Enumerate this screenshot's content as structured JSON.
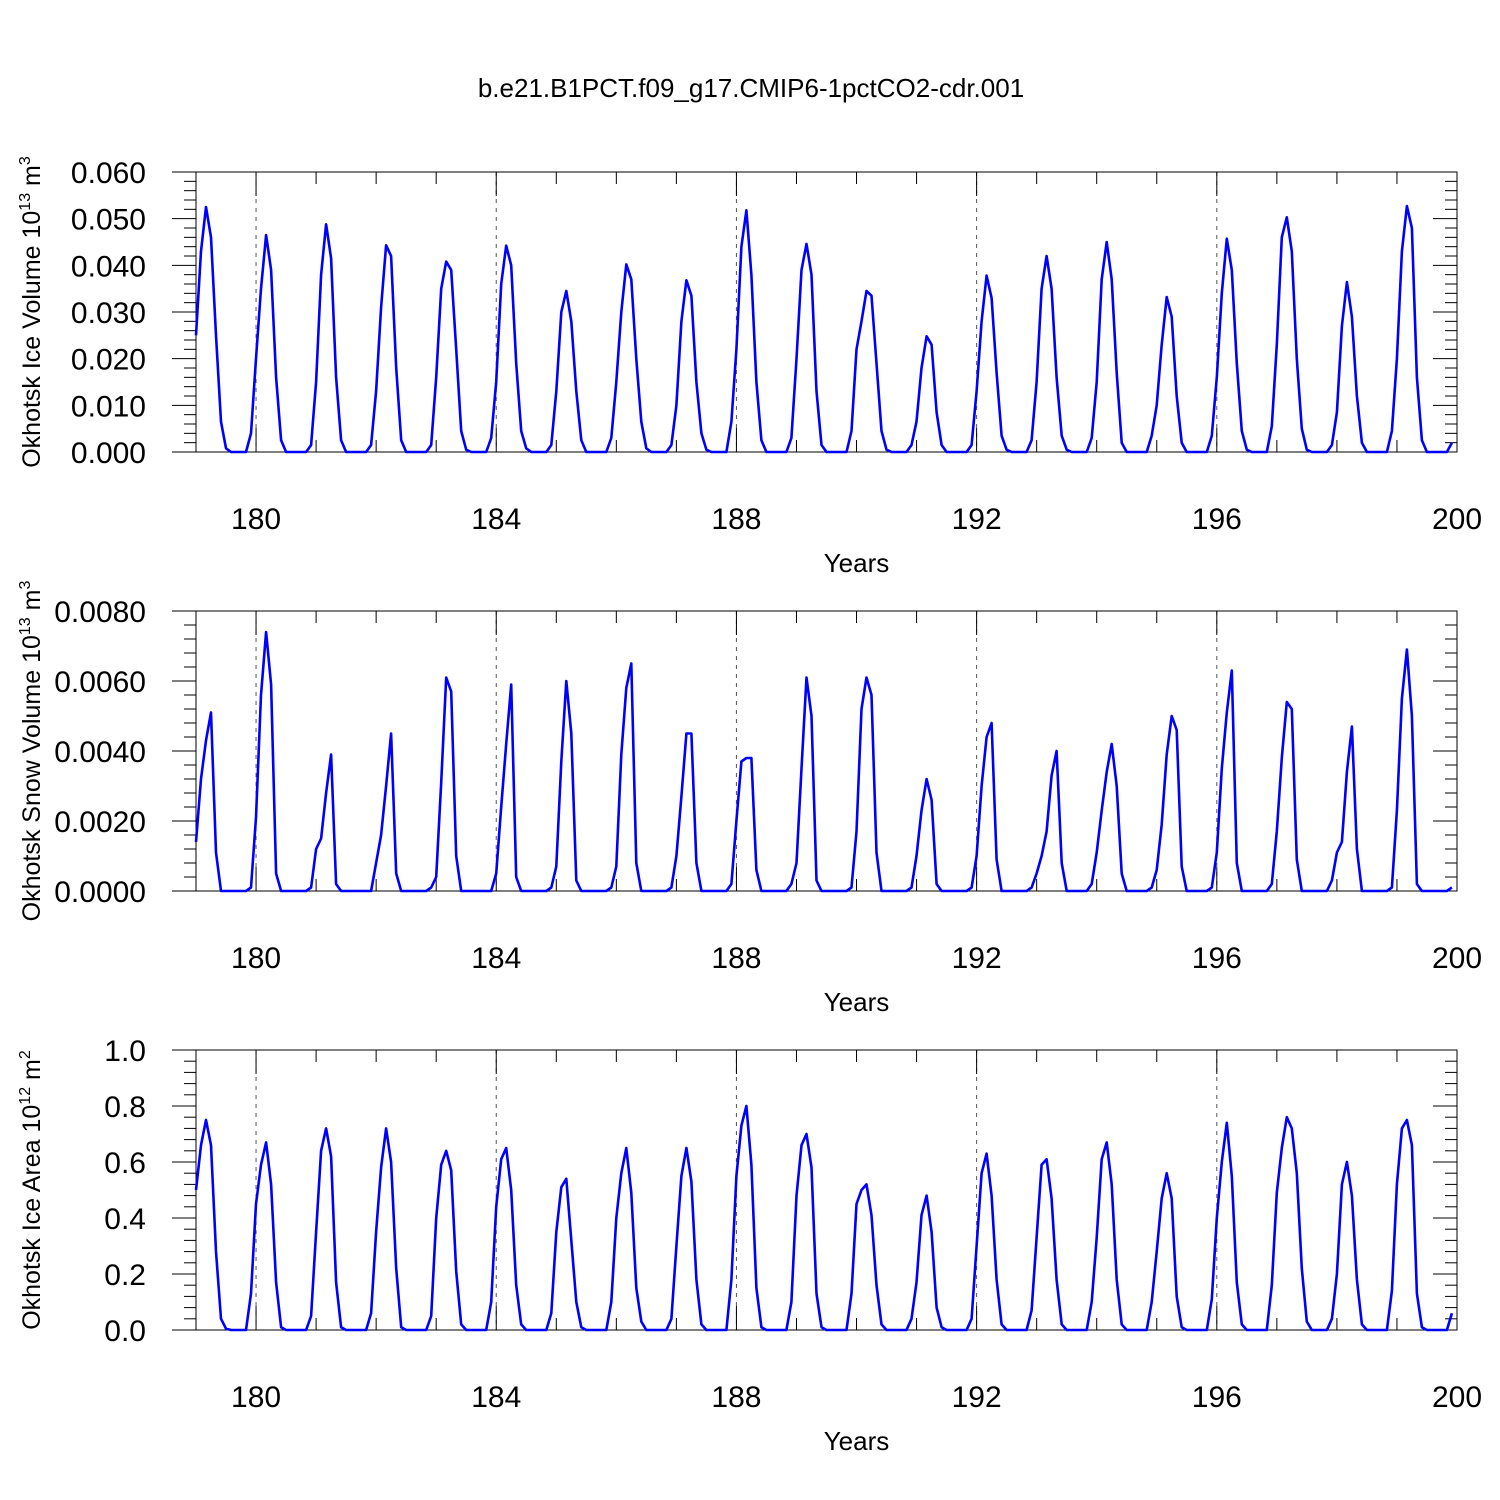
{
  "title": "b.e21.B1PCT.f09_g17.CMIP6-1pctCO2-cdr.001",
  "line_color": "#0000ff",
  "chart_data": [
    {
      "type": "line",
      "ylabel": "Okhotsk Ice Volume 10",
      "ylabel_exp": "13",
      "ylabel_unit": " m",
      "ylabel_unit_exp": "3",
      "xlabel": "Years",
      "xlim": [
        179,
        200
      ],
      "ylim": [
        0,
        0.06
      ],
      "x_ticks": [
        "180",
        "184",
        "188",
        "192",
        "196",
        "200"
      ],
      "y_ticks": [
        "0.000",
        "0.010",
        "0.020",
        "0.030",
        "0.040",
        "0.050",
        "0.060"
      ],
      "grid": "dashed vertical lines at 180, 184, 188, 192, 196",
      "series": [
        {
          "x_start": 179.0,
          "x_step": 0.08333,
          "values": [
            0.025,
            0.043,
            0.0525,
            0.046,
            0.025,
            0.0065,
            0.0008,
            0.0,
            0.0,
            0.0,
            0.0,
            0.004,
            0.02,
            0.035,
            0.0465,
            0.039,
            0.016,
            0.0025,
            0.0,
            0.0,
            0.0,
            0.0,
            0.0,
            0.0015,
            0.015,
            0.038,
            0.0488,
            0.0415,
            0.016,
            0.0025,
            0.0,
            0.0,
            0.0,
            0.0,
            0.0,
            0.0015,
            0.013,
            0.031,
            0.0443,
            0.042,
            0.018,
            0.0025,
            0.0,
            0.0,
            0.0,
            0.0,
            0.0,
            0.0015,
            0.016,
            0.035,
            0.0408,
            0.039,
            0.022,
            0.0045,
            0.0005,
            0.0,
            0.0,
            0.0,
            0.0,
            0.003,
            0.015,
            0.036,
            0.0442,
            0.04,
            0.019,
            0.0045,
            0.0008,
            0.0,
            0.0,
            0.0,
            0.0,
            0.0015,
            0.013,
            0.03,
            0.0345,
            0.028,
            0.013,
            0.0025,
            0.0,
            0.0,
            0.0,
            0.0,
            0.0,
            0.003,
            0.015,
            0.03,
            0.0402,
            0.037,
            0.02,
            0.0065,
            0.0008,
            0.0,
            0.0,
            0.0,
            0.0,
            0.0015,
            0.01,
            0.028,
            0.0368,
            0.0335,
            0.015,
            0.004,
            0.0005,
            0.0,
            0.0,
            0.0,
            0.0,
            0.0065,
            0.022,
            0.044,
            0.0518,
            0.038,
            0.015,
            0.0025,
            0.0,
            0.0,
            0.0,
            0.0,
            0.0,
            0.003,
            0.02,
            0.039,
            0.0446,
            0.038,
            0.013,
            0.0015,
            0.0,
            0.0,
            0.0,
            0.0,
            0.0,
            0.0045,
            0.022,
            0.028,
            0.0345,
            0.0335,
            0.019,
            0.0045,
            0.0005,
            0.0,
            0.0,
            0.0,
            0.0,
            0.0015,
            0.0065,
            0.018,
            0.0248,
            0.023,
            0.0085,
            0.0015,
            0.0,
            0.0,
            0.0,
            0.0,
            0.0,
            0.0015,
            0.013,
            0.028,
            0.0378,
            0.033,
            0.017,
            0.0035,
            0.0005,
            0.0,
            0.0,
            0.0,
            0.0,
            0.0025,
            0.015,
            0.035,
            0.042,
            0.035,
            0.016,
            0.0035,
            0.0005,
            0.0,
            0.0,
            0.0,
            0.0,
            0.003,
            0.015,
            0.037,
            0.045,
            0.037,
            0.017,
            0.002,
            0.0,
            0.0,
            0.0,
            0.0,
            0.0,
            0.0035,
            0.01,
            0.023,
            0.0332,
            0.029,
            0.012,
            0.002,
            0.0,
            0.0,
            0.0,
            0.0,
            0.0,
            0.0035,
            0.016,
            0.034,
            0.0457,
            0.039,
            0.019,
            0.0045,
            0.0005,
            0.0,
            0.0,
            0.0,
            0.0,
            0.0055,
            0.023,
            0.046,
            0.0503,
            0.043,
            0.02,
            0.005,
            0.0005,
            0.0,
            0.0,
            0.0,
            0.0,
            0.0015,
            0.0085,
            0.027,
            0.0364,
            0.029,
            0.012,
            0.002,
            0.0,
            0.0,
            0.0,
            0.0,
            0.0,
            0.0045,
            0.02,
            0.043,
            0.0527,
            0.048,
            0.016,
            0.0025,
            0.0,
            0.0,
            0.0,
            0.0,
            0.0,
            0.002
          ]
        }
      ]
    },
    {
      "type": "line",
      "ylabel": "Okhotsk Snow Volume 10",
      "ylabel_exp": "13",
      "ylabel_unit": " m",
      "ylabel_unit_exp": "3",
      "xlabel": "Years",
      "xlim": [
        179,
        200
      ],
      "ylim": [
        0,
        0.008
      ],
      "x_ticks": [
        "180",
        "184",
        "188",
        "192",
        "196",
        "200"
      ],
      "y_ticks": [
        "0.0000",
        "0.0020",
        "0.0040",
        "0.0060",
        "0.0080"
      ],
      "grid": "dashed vertical lines at 180, 184, 188, 192, 196",
      "series": [
        {
          "x_start": 179.0,
          "x_step": 0.08333,
          "values": [
            0.0014,
            0.0032,
            0.0043,
            0.0051,
            0.0011,
            0.0,
            0.0,
            0.0,
            0.0,
            0.0,
            0.0,
            0.0001,
            0.0021,
            0.0056,
            0.0074,
            0.0059,
            0.0005,
            0.0,
            0.0,
            0.0,
            0.0,
            0.0,
            0.0,
            0.0001,
            0.0012,
            0.0015,
            0.0028,
            0.0039,
            0.0002,
            0.0,
            0.0,
            0.0,
            0.0,
            0.0,
            0.0,
            0.0,
            0.0008,
            0.0016,
            0.003,
            0.0045,
            0.0005,
            0.0,
            0.0,
            0.0,
            0.0,
            0.0,
            0.0,
            0.0001,
            0.0004,
            0.0031,
            0.0061,
            0.0057,
            0.001,
            0.0,
            0.0,
            0.0,
            0.0,
            0.0,
            0.0,
            0.0,
            0.0005,
            0.0024,
            0.0042,
            0.0059,
            0.0004,
            0.0,
            0.0,
            0.0,
            0.0,
            0.0,
            0.0,
            0.0001,
            0.0007,
            0.0037,
            0.006,
            0.0045,
            0.0003,
            0.0,
            0.0,
            0.0,
            0.0,
            0.0,
            0.0,
            0.0001,
            0.0007,
            0.0039,
            0.0058,
            0.0065,
            0.0008,
            0.0,
            0.0,
            0.0,
            0.0,
            0.0,
            0.0,
            0.0001,
            0.001,
            0.0027,
            0.0045,
            0.0045,
            0.0008,
            0.0,
            0.0,
            0.0,
            0.0,
            0.0,
            0.0,
            0.0002,
            0.002,
            0.0037,
            0.0038,
            0.0038,
            0.0006,
            0.0,
            0.0,
            0.0,
            0.0,
            0.0,
            0.0,
            0.0002,
            0.0008,
            0.0035,
            0.0061,
            0.005,
            0.0003,
            0.0,
            0.0,
            0.0,
            0.0,
            0.0,
            0.0,
            0.0001,
            0.0017,
            0.0052,
            0.0061,
            0.0056,
            0.0011,
            0.0,
            0.0,
            0.0,
            0.0,
            0.0,
            0.0,
            0.0001,
            0.001,
            0.0023,
            0.0032,
            0.0026,
            0.0002,
            0.0,
            0.0,
            0.0,
            0.0,
            0.0,
            0.0,
            0.0001,
            0.001,
            0.003,
            0.0044,
            0.0048,
            0.0009,
            0.0,
            0.0,
            0.0,
            0.0,
            0.0,
            0.0,
            0.0001,
            0.0005,
            0.001,
            0.0017,
            0.0033,
            0.004,
            0.0008,
            0.0,
            0.0,
            0.0,
            0.0,
            0.0,
            0.0002,
            0.0011,
            0.0023,
            0.0034,
            0.0042,
            0.003,
            0.0005,
            0.0,
            0.0,
            0.0,
            0.0,
            0.0,
            0.0001,
            0.0006,
            0.0019,
            0.0039,
            0.005,
            0.0046,
            0.0007,
            0.0,
            0.0,
            0.0,
            0.0,
            0.0,
            0.0001,
            0.0011,
            0.0035,
            0.0051,
            0.0063,
            0.0008,
            0.0,
            0.0,
            0.0,
            0.0,
            0.0,
            0.0,
            0.0002,
            0.0017,
            0.0038,
            0.0054,
            0.0052,
            0.0009,
            0.0,
            0.0,
            0.0,
            0.0,
            0.0,
            0.0,
            0.0003,
            0.0011,
            0.0014,
            0.0034,
            0.0047,
            0.0012,
            0.0,
            0.0,
            0.0,
            0.0,
            0.0,
            0.0,
            0.0001,
            0.0023,
            0.0055,
            0.0069,
            0.005,
            0.0002,
            0.0,
            0.0,
            0.0,
            0.0,
            0.0,
            0.0,
            0.0001
          ]
        }
      ]
    },
    {
      "type": "line",
      "ylabel": "Okhotsk Ice Area 10",
      "ylabel_exp": "12",
      "ylabel_unit": " m",
      "ylabel_unit_exp": "2",
      "xlabel": "Years",
      "xlim": [
        179,
        200
      ],
      "ylim": [
        0,
        1.0
      ],
      "x_ticks": [
        "180",
        "184",
        "188",
        "192",
        "196",
        "200"
      ],
      "y_ticks": [
        "0.0",
        "0.2",
        "0.4",
        "0.6",
        "0.8",
        "1.0"
      ],
      "grid": "dashed vertical lines at 180, 184, 188, 192, 196",
      "series": [
        {
          "x_start": 179.0,
          "x_step": 0.08333,
          "values": [
            0.5,
            0.66,
            0.75,
            0.66,
            0.28,
            0.04,
            0.005,
            0.0,
            0.0,
            0.0,
            0.0,
            0.13,
            0.45,
            0.59,
            0.67,
            0.52,
            0.17,
            0.01,
            0.0,
            0.0,
            0.0,
            0.0,
            0.0,
            0.05,
            0.35,
            0.64,
            0.72,
            0.62,
            0.17,
            0.01,
            0.0,
            0.0,
            0.0,
            0.0,
            0.0,
            0.06,
            0.35,
            0.58,
            0.72,
            0.6,
            0.22,
            0.01,
            0.0,
            0.0,
            0.0,
            0.0,
            0.0,
            0.05,
            0.4,
            0.59,
            0.64,
            0.57,
            0.21,
            0.02,
            0.0,
            0.0,
            0.0,
            0.0,
            0.0,
            0.1,
            0.44,
            0.61,
            0.65,
            0.5,
            0.16,
            0.02,
            0.0,
            0.0,
            0.0,
            0.0,
            0.0,
            0.06,
            0.35,
            0.51,
            0.54,
            0.32,
            0.1,
            0.01,
            0.0,
            0.0,
            0.0,
            0.0,
            0.0,
            0.1,
            0.4,
            0.56,
            0.65,
            0.49,
            0.15,
            0.03,
            0.0,
            0.0,
            0.0,
            0.0,
            0.0,
            0.04,
            0.3,
            0.55,
            0.65,
            0.53,
            0.18,
            0.02,
            0.0,
            0.0,
            0.0,
            0.0,
            0.0,
            0.18,
            0.55,
            0.73,
            0.8,
            0.59,
            0.15,
            0.01,
            0.0,
            0.0,
            0.0,
            0.0,
            0.0,
            0.1,
            0.48,
            0.66,
            0.7,
            0.58,
            0.13,
            0.01,
            0.0,
            0.0,
            0.0,
            0.0,
            0.0,
            0.13,
            0.45,
            0.5,
            0.52,
            0.41,
            0.16,
            0.02,
            0.0,
            0.0,
            0.0,
            0.0,
            0.0,
            0.04,
            0.17,
            0.41,
            0.48,
            0.35,
            0.08,
            0.01,
            0.0,
            0.0,
            0.0,
            0.0,
            0.0,
            0.04,
            0.3,
            0.56,
            0.63,
            0.48,
            0.18,
            0.02,
            0.0,
            0.0,
            0.0,
            0.0,
            0.0,
            0.07,
            0.33,
            0.59,
            0.61,
            0.47,
            0.18,
            0.02,
            0.0,
            0.0,
            0.0,
            0.0,
            0.0,
            0.1,
            0.33,
            0.61,
            0.67,
            0.52,
            0.18,
            0.02,
            0.0,
            0.0,
            0.0,
            0.0,
            0.0,
            0.1,
            0.28,
            0.47,
            0.56,
            0.47,
            0.12,
            0.01,
            0.0,
            0.0,
            0.0,
            0.0,
            0.0,
            0.11,
            0.4,
            0.6,
            0.74,
            0.55,
            0.17,
            0.02,
            0.0,
            0.0,
            0.0,
            0.0,
            0.0,
            0.16,
            0.49,
            0.65,
            0.76,
            0.72,
            0.56,
            0.22,
            0.03,
            0.0,
            0.0,
            0.0,
            0.0,
            0.04,
            0.2,
            0.52,
            0.6,
            0.48,
            0.18,
            0.02,
            0.0,
            0.0,
            0.0,
            0.0,
            0.0,
            0.14,
            0.52,
            0.72,
            0.75,
            0.66,
            0.13,
            0.01,
            0.0,
            0.0,
            0.0,
            0.0,
            0.0,
            0.06
          ]
        }
      ]
    }
  ]
}
